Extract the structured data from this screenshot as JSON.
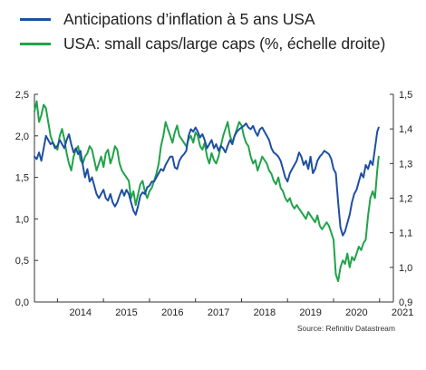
{
  "legend": [
    {
      "label": "Anticipations d’inflation à 5 ans USA",
      "color": "#1f4fa3"
    },
    {
      "label": "USA: small caps/large caps (%, échelle droite)",
      "color": "#21a34a"
    }
  ],
  "source": "Source: Refinitiv Datastream",
  "chart_data": {
    "type": "line",
    "x_ticks": [
      "2014",
      "2015",
      "2016",
      "2017",
      "2018",
      "2019",
      "2020",
      "2021"
    ],
    "y_left": {
      "range": [
        0.0,
        2.5
      ],
      "ticks": [
        "0,0",
        "0,5",
        "1,0",
        "1,5",
        "2,0",
        "2,5"
      ]
    },
    "y_right": {
      "range": [
        0.9,
        1.5
      ],
      "ticks": [
        "0,9",
        "1,0",
        "1,1",
        "1,2",
        "1,3",
        "1,4",
        "1,5"
      ]
    },
    "grid": false,
    "series": [
      {
        "name": "Anticipations d’inflation à 5 ans USA",
        "axis": "left",
        "color": "#1f4fa3",
        "x": [
          2013.5,
          2013.55,
          2013.6,
          2013.65,
          2013.7,
          2013.75,
          2013.8,
          2013.85,
          2013.9,
          2013.95,
          2014.0,
          2014.05,
          2014.1,
          2014.15,
          2014.2,
          2014.25,
          2014.3,
          2014.35,
          2014.4,
          2014.45,
          2014.5,
          2014.55,
          2014.6,
          2014.65,
          2014.7,
          2014.75,
          2014.8,
          2014.85,
          2014.9,
          2014.95,
          2015.0,
          2015.05,
          2015.1,
          2015.15,
          2015.2,
          2015.25,
          2015.3,
          2015.35,
          2015.4,
          2015.45,
          2015.5,
          2015.55,
          2015.6,
          2015.65,
          2015.7,
          2015.75,
          2015.8,
          2015.85,
          2015.9,
          2015.95,
          2016.0,
          2016.05,
          2016.1,
          2016.15,
          2016.2,
          2016.25,
          2016.3,
          2016.35,
          2016.4,
          2016.45,
          2016.5,
          2016.55,
          2016.6,
          2016.65,
          2016.7,
          2016.75,
          2016.8,
          2016.85,
          2016.9,
          2016.95,
          2017.0,
          2017.05,
          2017.1,
          2017.15,
          2017.2,
          2017.25,
          2017.3,
          2017.35,
          2017.4,
          2017.45,
          2017.5,
          2017.55,
          2017.6,
          2017.65,
          2017.7,
          2017.75,
          2017.8,
          2017.85,
          2017.9,
          2017.95,
          2018.0,
          2018.05,
          2018.1,
          2018.15,
          2018.2,
          2018.25,
          2018.3,
          2018.35,
          2018.4,
          2018.45,
          2018.5,
          2018.55,
          2018.6,
          2018.65,
          2018.7,
          2018.75,
          2018.8,
          2018.85,
          2018.9,
          2018.95,
          2019.0,
          2019.05,
          2019.1,
          2019.15,
          2019.2,
          2019.25,
          2019.3,
          2019.35,
          2019.4,
          2019.45,
          2019.5,
          2019.55,
          2019.6,
          2019.65,
          2019.7,
          2019.75,
          2019.8,
          2019.85,
          2019.9,
          2019.95,
          2020.0,
          2020.05,
          2020.1,
          2020.15,
          2020.2,
          2020.25,
          2020.3,
          2020.35,
          2020.4,
          2020.45,
          2020.5,
          2020.55,
          2020.6,
          2020.65,
          2020.7,
          2020.75,
          2020.8,
          2020.85,
          2020.9,
          2020.95
        ],
        "values": [
          1.75,
          1.72,
          1.8,
          1.7,
          1.85,
          2.0,
          1.95,
          1.9,
          1.92,
          1.85,
          1.88,
          1.95,
          1.9,
          1.85,
          1.95,
          2.02,
          1.9,
          1.8,
          1.85,
          1.78,
          1.82,
          1.65,
          1.5,
          1.6,
          1.45,
          1.5,
          1.4,
          1.3,
          1.25,
          1.3,
          1.35,
          1.25,
          1.22,
          1.3,
          1.2,
          1.15,
          1.2,
          1.28,
          1.35,
          1.28,
          1.35,
          1.3,
          1.2,
          1.1,
          1.05,
          1.15,
          1.28,
          1.32,
          1.3,
          1.38,
          1.4,
          1.45,
          1.45,
          1.5,
          1.55,
          1.6,
          1.58,
          1.65,
          1.7,
          1.75,
          1.75,
          1.62,
          1.6,
          1.7,
          1.75,
          1.78,
          1.82,
          2.0,
          2.08,
          2.05,
          2.1,
          2.05,
          1.98,
          2.02,
          1.95,
          1.85,
          1.9,
          1.95,
          1.85,
          1.9,
          1.82,
          1.88,
          1.85,
          1.8,
          1.88,
          1.95,
          1.9,
          2.0,
          2.05,
          2.08,
          2.1,
          2.12,
          2.15,
          2.1,
          2.08,
          2.12,
          2.05,
          2.0,
          2.08,
          2.1,
          2.05,
          2.0,
          1.95,
          1.85,
          1.8,
          1.78,
          1.75,
          1.7,
          1.6,
          1.5,
          1.45,
          1.55,
          1.6,
          1.65,
          1.7,
          1.8,
          1.75,
          1.65,
          1.7,
          1.6,
          1.75,
          1.55,
          1.6,
          1.7,
          1.75,
          1.78,
          1.82,
          1.8,
          1.78,
          1.72,
          1.6,
          1.55,
          1.2,
          0.9,
          0.8,
          0.85,
          0.95,
          1.05,
          1.2,
          1.3,
          1.35,
          1.45,
          1.55,
          1.5,
          1.65,
          1.6,
          1.7,
          1.65,
          1.85,
          2.05
        ],
        "last_point": [
          2020.98,
          2.1
        ]
      },
      {
        "name": "USA: small caps/large caps (%, échelle droite)",
        "axis": "right",
        "color": "#21a34a",
        "x": [
          2013.5,
          2013.55,
          2013.6,
          2013.65,
          2013.7,
          2013.75,
          2013.8,
          2013.85,
          2013.9,
          2013.95,
          2014.0,
          2014.05,
          2014.1,
          2014.15,
          2014.2,
          2014.25,
          2014.3,
          2014.35,
          2014.4,
          2014.45,
          2014.5,
          2014.55,
          2014.6,
          2014.65,
          2014.7,
          2014.75,
          2014.8,
          2014.85,
          2014.9,
          2014.95,
          2015.0,
          2015.05,
          2015.1,
          2015.15,
          2015.2,
          2015.25,
          2015.3,
          2015.35,
          2015.4,
          2015.45,
          2015.5,
          2015.55,
          2015.6,
          2015.65,
          2015.7,
          2015.75,
          2015.8,
          2015.85,
          2015.9,
          2015.95,
          2016.0,
          2016.05,
          2016.1,
          2016.15,
          2016.2,
          2016.25,
          2016.3,
          2016.35,
          2016.4,
          2016.45,
          2016.5,
          2016.55,
          2016.6,
          2016.65,
          2016.7,
          2016.75,
          2016.8,
          2016.85,
          2016.9,
          2016.95,
          2017.0,
          2017.05,
          2017.1,
          2017.15,
          2017.2,
          2017.25,
          2017.3,
          2017.35,
          2017.4,
          2017.45,
          2017.5,
          2017.55,
          2017.6,
          2017.65,
          2017.7,
          2017.75,
          2017.8,
          2017.85,
          2017.9,
          2017.95,
          2018.0,
          2018.05,
          2018.1,
          2018.15,
          2018.2,
          2018.25,
          2018.3,
          2018.35,
          2018.4,
          2018.45,
          2018.5,
          2018.55,
          2018.6,
          2018.65,
          2018.7,
          2018.75,
          2018.8,
          2018.85,
          2018.9,
          2018.95,
          2019.0,
          2019.05,
          2019.1,
          2019.15,
          2019.2,
          2019.25,
          2019.3,
          2019.35,
          2019.4,
          2019.45,
          2019.5,
          2019.55,
          2019.6,
          2019.65,
          2019.7,
          2019.75,
          2019.8,
          2019.85,
          2019.9,
          2019.95,
          2020.0,
          2020.05,
          2020.1,
          2020.15,
          2020.2,
          2020.25,
          2020.3,
          2020.35,
          2020.4,
          2020.45,
          2020.5,
          2020.55,
          2020.6,
          2020.65,
          2020.7,
          2020.75,
          2020.8,
          2020.85,
          2020.9,
          2020.95
        ],
        "values": [
          1.45,
          1.48,
          1.42,
          1.44,
          1.47,
          1.46,
          1.42,
          1.38,
          1.36,
          1.35,
          1.34,
          1.38,
          1.4,
          1.37,
          1.33,
          1.3,
          1.28,
          1.32,
          1.34,
          1.35,
          1.31,
          1.3,
          1.32,
          1.33,
          1.35,
          1.34,
          1.31,
          1.28,
          1.3,
          1.32,
          1.29,
          1.33,
          1.34,
          1.3,
          1.32,
          1.35,
          1.34,
          1.3,
          1.28,
          1.27,
          1.26,
          1.25,
          1.2,
          1.22,
          1.18,
          1.21,
          1.24,
          1.25,
          1.22,
          1.2,
          1.22,
          1.23,
          1.25,
          1.27,
          1.3,
          1.35,
          1.38,
          1.42,
          1.4,
          1.38,
          1.36,
          1.39,
          1.41,
          1.38,
          1.37,
          1.36,
          1.35,
          1.37,
          1.38,
          1.36,
          1.39,
          1.38,
          1.35,
          1.34,
          1.36,
          1.32,
          1.3,
          1.33,
          1.31,
          1.3,
          1.32,
          1.35,
          1.38,
          1.4,
          1.42,
          1.38,
          1.36,
          1.38,
          1.4,
          1.42,
          1.41,
          1.38,
          1.36,
          1.35,
          1.32,
          1.3,
          1.31,
          1.28,
          1.3,
          1.32,
          1.31,
          1.3,
          1.28,
          1.27,
          1.25,
          1.24,
          1.26,
          1.23,
          1.22,
          1.2,
          1.19,
          1.2,
          1.18,
          1.17,
          1.18,
          1.17,
          1.16,
          1.15,
          1.14,
          1.16,
          1.15,
          1.14,
          1.13,
          1.15,
          1.12,
          1.11,
          1.12,
          1.13,
          1.12,
          1.1,
          1.08,
          0.98,
          0.96,
          1.0,
          1.02,
          1.01,
          1.04,
          1.0,
          1.03,
          1.02,
          1.04,
          1.06,
          1.05,
          1.07,
          1.08,
          1.15,
          1.2,
          1.22,
          1.2,
          1.28
        ],
        "last_point": [
          2020.98,
          1.32
        ]
      }
    ]
  }
}
